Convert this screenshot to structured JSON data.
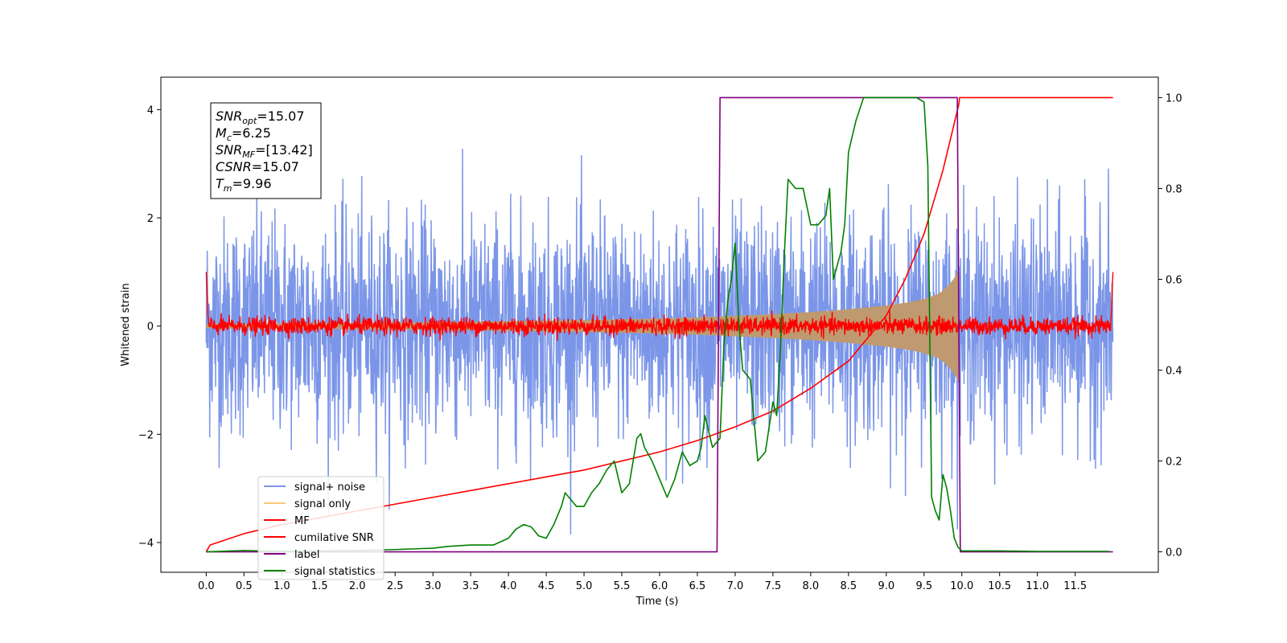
{
  "chart_data": {
    "type": "line",
    "xlabel": "Time (s)",
    "ylabel": "Whitened strain",
    "x_ticks": [
      "0.0",
      "0.5",
      "1.0",
      "1.5",
      "2.0",
      "2.5",
      "3.0",
      "3.5",
      "4.0",
      "4.5",
      "5.0",
      "5.5",
      "6.0",
      "6.5",
      "7.0",
      "7.5",
      "8.0",
      "8.5",
      "9.0",
      "9.5",
      "10.0",
      "10.5",
      "11.0",
      "11.5"
    ],
    "x_tick_values": [
      0,
      0.5,
      1,
      1.5,
      2,
      2.5,
      3,
      3.5,
      4,
      4.5,
      5,
      5.5,
      6,
      6.5,
      7,
      7.5,
      8,
      8.5,
      9,
      9.5,
      10,
      10.5,
      11,
      11.5
    ],
    "xlim": [
      -0.6,
      12.6
    ],
    "y_left_ticks": [
      "−4",
      "−2",
      "0",
      "2",
      "4"
    ],
    "y_left_tick_values": [
      -4,
      -2,
      0,
      2,
      4
    ],
    "ylim_left": [
      -4.55,
      4.6
    ],
    "y_right_ticks": [
      "0.0",
      "0.2",
      "0.4",
      "0.6",
      "0.8",
      "1.0"
    ],
    "y_right_tick_values": [
      0,
      0.2,
      0.4,
      0.6,
      0.8,
      1.0
    ],
    "ylim_right": [
      -0.045,
      1.045
    ],
    "grid": false,
    "legend_position": "lower-left",
    "series": [
      {
        "name": "signal+ noise",
        "color": "#7b96e8",
        "axis": "left",
        "kind": "noise",
        "x_range": [
          0,
          12.0
        ],
        "amplitude": 1.0,
        "peak": 3.5
      },
      {
        "name": "signal only",
        "color": "#f5c97a",
        "axis": "left",
        "kind": "chirp",
        "x_range": [
          0,
          9.96
        ],
        "envelope_x": [
          0,
          1,
          2,
          3,
          4,
          5,
          6,
          6.5,
          7,
          7.5,
          8,
          8.5,
          9,
          9.3,
          9.5,
          9.7,
          9.8,
          9.9,
          9.96
        ],
        "envelope_y": [
          0.04,
          0.05,
          0.06,
          0.07,
          0.09,
          0.11,
          0.14,
          0.16,
          0.19,
          0.22,
          0.26,
          0.31,
          0.38,
          0.44,
          0.5,
          0.6,
          0.72,
          0.88,
          1.05
        ]
      },
      {
        "name": "MF",
        "color": "#ff0000",
        "axis": "left",
        "kind": "mf",
        "x_range": [
          0,
          12.0
        ],
        "amplitude": 0.08,
        "edge_value": 1.0
      },
      {
        "name": "cumilative SNR",
        "color": "#ff0000",
        "axis": "right",
        "x": [
          0,
          0.05,
          0.5,
          1,
          1.5,
          2,
          2.5,
          3,
          3.5,
          4,
          4.5,
          5,
          5.5,
          6,
          6.5,
          7,
          7.5,
          8,
          8.5,
          9,
          9.25,
          9.5,
          9.75,
          9.96,
          9.97,
          12.0
        ],
        "y": [
          0.0,
          0.015,
          0.04,
          0.06,
          0.075,
          0.09,
          0.105,
          0.12,
          0.135,
          0.15,
          0.165,
          0.18,
          0.2,
          0.22,
          0.245,
          0.275,
          0.31,
          0.36,
          0.42,
          0.52,
          0.6,
          0.7,
          0.84,
          0.985,
          1.0,
          1.0
        ]
      },
      {
        "name": "label",
        "color": "#800080",
        "axis": "right",
        "x": [
          0,
          6.76,
          6.8,
          9.94,
          9.98,
          12.0
        ],
        "y": [
          0,
          0,
          1,
          1,
          0,
          0
        ]
      },
      {
        "name": "signal statistics",
        "color": "#008000",
        "axis": "right",
        "x": [
          0,
          0.5,
          1,
          1.5,
          2,
          2.5,
          3,
          3.2,
          3.5,
          3.8,
          4,
          4.1,
          4.2,
          4.3,
          4.4,
          4.5,
          4.6,
          4.7,
          4.75,
          4.8,
          4.9,
          5.0,
          5.1,
          5.2,
          5.3,
          5.4,
          5.5,
          5.6,
          5.7,
          5.75,
          5.8,
          5.9,
          6.0,
          6.1,
          6.2,
          6.3,
          6.4,
          6.5,
          6.55,
          6.6,
          6.7,
          6.8,
          6.85,
          6.9,
          6.95,
          7.0,
          7.05,
          7.1,
          7.2,
          7.3,
          7.4,
          7.5,
          7.55,
          7.6,
          7.65,
          7.7,
          7.8,
          7.9,
          8.0,
          8.1,
          8.2,
          8.25,
          8.3,
          8.4,
          8.45,
          8.5,
          8.6,
          8.7,
          8.8,
          8.9,
          9.0,
          9.1,
          9.2,
          9.3,
          9.4,
          9.5,
          9.55,
          9.6,
          9.65,
          9.7,
          9.75,
          9.8,
          9.85,
          9.9,
          9.95,
          10.0,
          10.5,
          11.0,
          11.5,
          11.95
        ],
        "y": [
          0.0,
          0.003,
          0.001,
          0.002,
          0.003,
          0.005,
          0.008,
          0.012,
          0.015,
          0.015,
          0.03,
          0.05,
          0.06,
          0.055,
          0.035,
          0.03,
          0.06,
          0.1,
          0.13,
          0.12,
          0.1,
          0.1,
          0.13,
          0.15,
          0.18,
          0.2,
          0.13,
          0.15,
          0.25,
          0.26,
          0.23,
          0.2,
          0.16,
          0.12,
          0.16,
          0.22,
          0.19,
          0.2,
          0.23,
          0.3,
          0.23,
          0.25,
          0.45,
          0.55,
          0.6,
          0.68,
          0.5,
          0.4,
          0.38,
          0.2,
          0.22,
          0.33,
          0.3,
          0.45,
          0.65,
          0.82,
          0.8,
          0.8,
          0.72,
          0.72,
          0.74,
          0.8,
          0.6,
          0.66,
          0.72,
          0.88,
          0.95,
          1.0,
          1.0,
          1.0,
          1.0,
          1.0,
          1.0,
          1.0,
          1.0,
          0.99,
          0.85,
          0.12,
          0.09,
          0.07,
          0.17,
          0.14,
          0.09,
          0.03,
          0.01,
          0.002,
          0.002,
          0.001,
          0.001,
          0.001
        ]
      }
    ],
    "annotation": [
      {
        "base": "SNR",
        "sub": "opt",
        "value": "=15.07"
      },
      {
        "base": "M",
        "sub": "c",
        "value": "=6.25"
      },
      {
        "base": "SNR",
        "sub": "MF",
        "value": "=[13.42]"
      },
      {
        "base": "CSNR",
        "sub": "",
        "value": "=15.07"
      },
      {
        "base": "T",
        "sub": "m",
        "value": "=9.96"
      }
    ]
  }
}
